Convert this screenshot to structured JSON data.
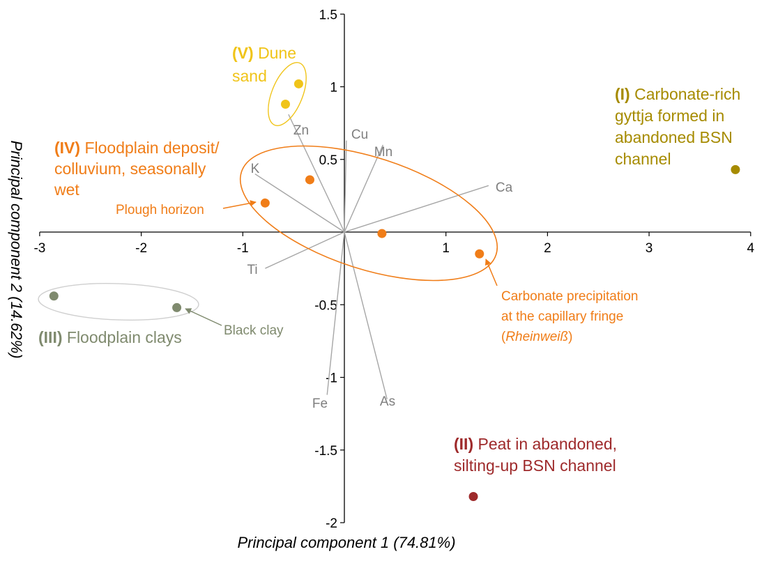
{
  "chart_data": {
    "type": "scatter",
    "subtype": "pca-biplot",
    "title": "",
    "xlabel": "Principal component 1 (74.81%)",
    "ylabel": "Principal component 2 (14.62%)",
    "xlim": [
      -3,
      4
    ],
    "ylim": [
      -2,
      1.5
    ],
    "xticks": [
      "-3",
      "-2",
      "-1",
      "1",
      "2",
      "3",
      "4"
    ],
    "yticks": [
      "1.5",
      "1",
      "0.5",
      "-0.5",
      "-1",
      "-1.5",
      "-2"
    ],
    "grid": false,
    "loadings": [
      {
        "name": "Cu",
        "x": 0.02,
        "y": 0.63
      },
      {
        "name": "Zn",
        "x": -0.55,
        "y": 0.81
      },
      {
        "name": "Mn",
        "x": 0.38,
        "y": 0.6
      },
      {
        "name": "K",
        "x": -0.88,
        "y": 0.4
      },
      {
        "name": "Ca",
        "x": 1.42,
        "y": 0.32
      },
      {
        "name": "Ti",
        "x": -0.78,
        "y": -0.25
      },
      {
        "name": "Fe",
        "x": -0.17,
        "y": -1.12
      },
      {
        "name": "As",
        "x": 0.42,
        "y": -1.15
      }
    ],
    "groups": [
      {
        "id": "I",
        "numeral": "(I)",
        "label": "Carbonate-rich gyttja formed in abandoned BSN channel",
        "lines": [
          "Carbonate-rich",
          "gyttja formed in",
          "abandoned BSN",
          "channel"
        ],
        "color": "#a68b00",
        "points": [
          [
            3.85,
            0.43
          ]
        ]
      },
      {
        "id": "II",
        "numeral": "(II)",
        "label": "Peat in abandoned, silting-up BSN channel",
        "lines": [
          "Peat in abandoned,",
          "silting-up BSN channel"
        ],
        "color": "#9e2a2b",
        "points": [
          [
            1.27,
            -1.82
          ]
        ]
      },
      {
        "id": "III",
        "numeral": "(III)",
        "label": "Floodplain clays",
        "lines": [
          "Floodplain clays"
        ],
        "color": "#7f8a6e",
        "points": [
          [
            -2.86,
            -0.44
          ],
          [
            -1.65,
            -0.52
          ]
        ]
      },
      {
        "id": "IV",
        "numeral": "(IV)",
        "label": "Floodplain deposit/ colluvium, seasonally wet",
        "lines": [
          "Floodplain deposit/",
          "colluvium, seasonally",
          "wet"
        ],
        "color": "#f07d18",
        "points": [
          [
            -0.78,
            0.2
          ],
          [
            -0.34,
            0.36
          ],
          [
            0.37,
            -0.01
          ],
          [
            1.33,
            -0.15
          ]
        ]
      },
      {
        "id": "V",
        "numeral": "(V)",
        "label": "Dune sand",
        "lines": [
          "Dune",
          "sand"
        ],
        "color": "#f0c419",
        "points": [
          [
            -0.45,
            1.02
          ],
          [
            -0.58,
            0.88
          ]
        ]
      }
    ],
    "annotations": [
      {
        "text": "Plough horizon",
        "color": "#f07d18"
      },
      {
        "text": "Carbonate precipitation",
        "color": "#f07d18"
      },
      {
        "text": "at the capillary fringe",
        "color": "#f07d18"
      },
      {
        "text": "(Rheinweiß)",
        "italic_part": "Rheinweiß",
        "color": "#f07d18"
      },
      {
        "text": "Black clay",
        "color": "#7f8a6e"
      }
    ]
  },
  "colors": {
    "vector": "#a6a6a6",
    "vector_label": "#7f7f7f",
    "axis": "#000000",
    "dune_ellipse": "#f0c419",
    "floodplain_ellipse": "#f07d18",
    "clay_ellipse": "#cfcfcf"
  }
}
